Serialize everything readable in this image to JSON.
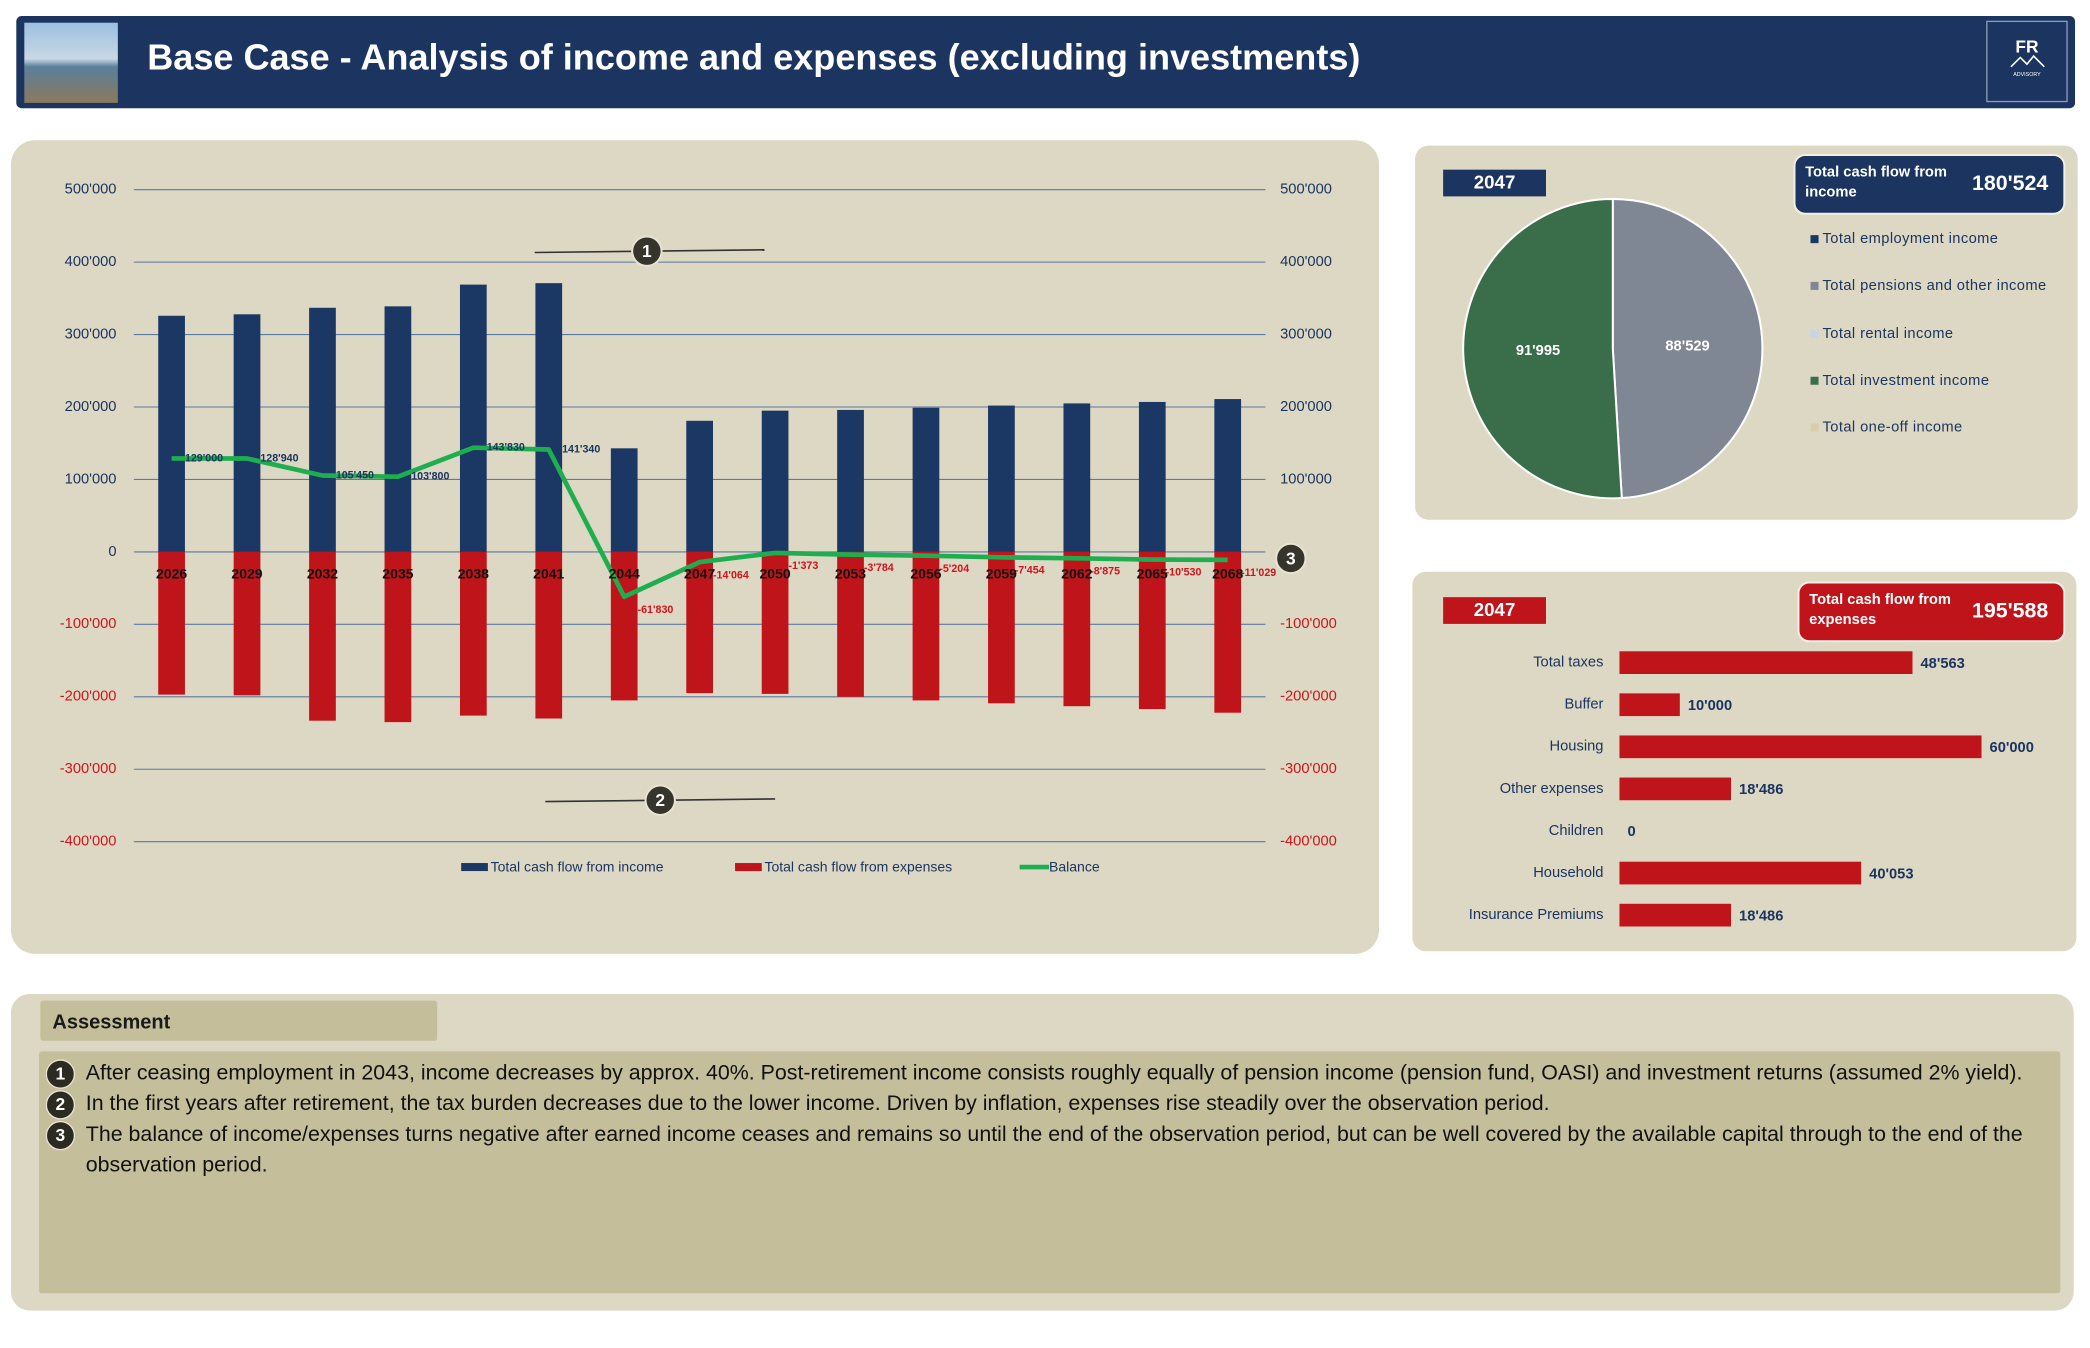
{
  "header": {
    "title": "Base Case - Analysis of income and expenses (excluding investments)",
    "logo": "FR",
    "logo_subtitle": "ADVISORY"
  },
  "chart_data": [
    {
      "type": "bar",
      "categories": [
        "2026",
        "2029",
        "2032",
        "2035",
        "2038",
        "2041",
        "2044",
        "2047",
        "2050",
        "2053",
        "2056",
        "2059",
        "2062",
        "2065",
        "2068"
      ],
      "series": [
        {
          "name": "Total cash flow from income",
          "color": "#1b3764",
          "values": [
            326000,
            328000,
            337000,
            339000,
            369000,
            371000,
            143000,
            181000,
            195000,
            196000,
            199000,
            202000,
            205000,
            207000,
            211000
          ]
        },
        {
          "name": "Total cash flow from expenses",
          "color": "#c0141b",
          "values": [
            -197000,
            -198000,
            -233000,
            -235000,
            -226000,
            -230000,
            -205000,
            -195000,
            -196000,
            -200000,
            -205000,
            -209000,
            -213000,
            -217000,
            -222000
          ]
        },
        {
          "name": "Balance",
          "type": "line",
          "axis": "y2",
          "color": "#1fae4f",
          "values": [
            129000,
            128940,
            105450,
            103800,
            143830,
            141340,
            -61830,
            -14064,
            -1373,
            -3784,
            -5204,
            -7454,
            -8875,
            -10530,
            -11029
          ],
          "value_labels": [
            "129'000",
            "128'940",
            "105'450",
            "103'800",
            "143'830",
            "141'340",
            "-61'830",
            "-14'064",
            "-1'373",
            "-3'784",
            "-5'204",
            "-7'454",
            "-8'875",
            "-10'530",
            "-11'029"
          ]
        }
      ],
      "ylim": [
        -400000,
        500000
      ],
      "yticks": [
        {
          "value": -400000,
          "label": "-400'000"
        },
        {
          "value": -300000,
          "label": "-300'000"
        },
        {
          "value": -200000,
          "label": "-200'000"
        },
        {
          "value": -100000,
          "label": "-100'000"
        },
        0,
        {
          "value": 100000,
          "label": "100'000"
        },
        {
          "value": 200000,
          "label": "200'000"
        },
        {
          "value": 300000,
          "label": "300'000"
        },
        {
          "value": 400000,
          "label": "400'000"
        },
        {
          "value": 500000,
          "label": "500'000"
        }
      ],
      "y2lim": [
        -400000,
        500000
      ],
      "y2ticks": [
        {
          "value": -400000,
          "label": "-400'000"
        },
        {
          "value": -300000,
          "label": "-300'000"
        },
        {
          "value": -200000,
          "label": "-200'000"
        },
        {
          "value": -100000,
          "label": "-100'000"
        },
        0,
        {
          "value": 100000,
          "label": "100'000"
        },
        {
          "value": 200000,
          "label": "200'000"
        },
        {
          "value": 300000,
          "label": "300'000"
        },
        {
          "value": 400000,
          "label": "400'000"
        },
        {
          "value": 500000,
          "label": "500'000"
        }
      ],
      "grid": true,
      "legend": "bottom",
      "annotations": [
        "1",
        "2",
        "3"
      ]
    },
    {
      "type": "pie",
      "year": "2047",
      "total_title": "Total cash flow from income",
      "total": 180524,
      "total_label": "180'524",
      "categories": [
        "Total employment income",
        "Total pensions and other income",
        "Total rental income",
        "Total investment income",
        "Total one-off income"
      ],
      "colors": [
        "#1b3764",
        "#7f8794",
        "#c8d5e8",
        "#3a6e4b",
        "#d8cfa6"
      ],
      "values": [
        0,
        88529,
        0,
        91995,
        0
      ],
      "value_labels": [
        null,
        "88'529",
        null,
        "91'995",
        null
      ],
      "legend": "right"
    },
    {
      "type": "hbar",
      "year": "2047",
      "total_title": "Total cash flow from expenses",
      "total": 195588,
      "total_label": "195'588",
      "categories": [
        "Total taxes",
        "Buffer",
        "Housing",
        "Other expenses",
        "Children",
        "Household",
        "Insurance Premiums"
      ],
      "values": [
        48563,
        10000,
        60000,
        18486,
        0,
        40053,
        18486
      ],
      "value_labels": [
        "48'563",
        "10'000",
        "60'000",
        "18'486",
        "0",
        "40'053",
        "18'486"
      ],
      "color": "#c0141b"
    }
  ],
  "assessment": {
    "title": "Assessment",
    "items": [
      {
        "marker": "1",
        "text": "After ceasing employment in 2043, income decreases by approx. 40%. Post-retirement income consists roughly equally of pension income (pension fund, OASI) and investment returns (assumed 2% yield)."
      },
      {
        "marker": "2",
        "text": "In the first years after retirement, the tax burden decreases due to the lower income. Driven by inflation, expenses rise steadily over the observation period."
      },
      {
        "marker": "3",
        "text": "The balance of income/expenses turns negative after earned income ceases and remains so until the end of the observation period, but can be well covered by the available capital through to the end of the observation period."
      }
    ]
  }
}
